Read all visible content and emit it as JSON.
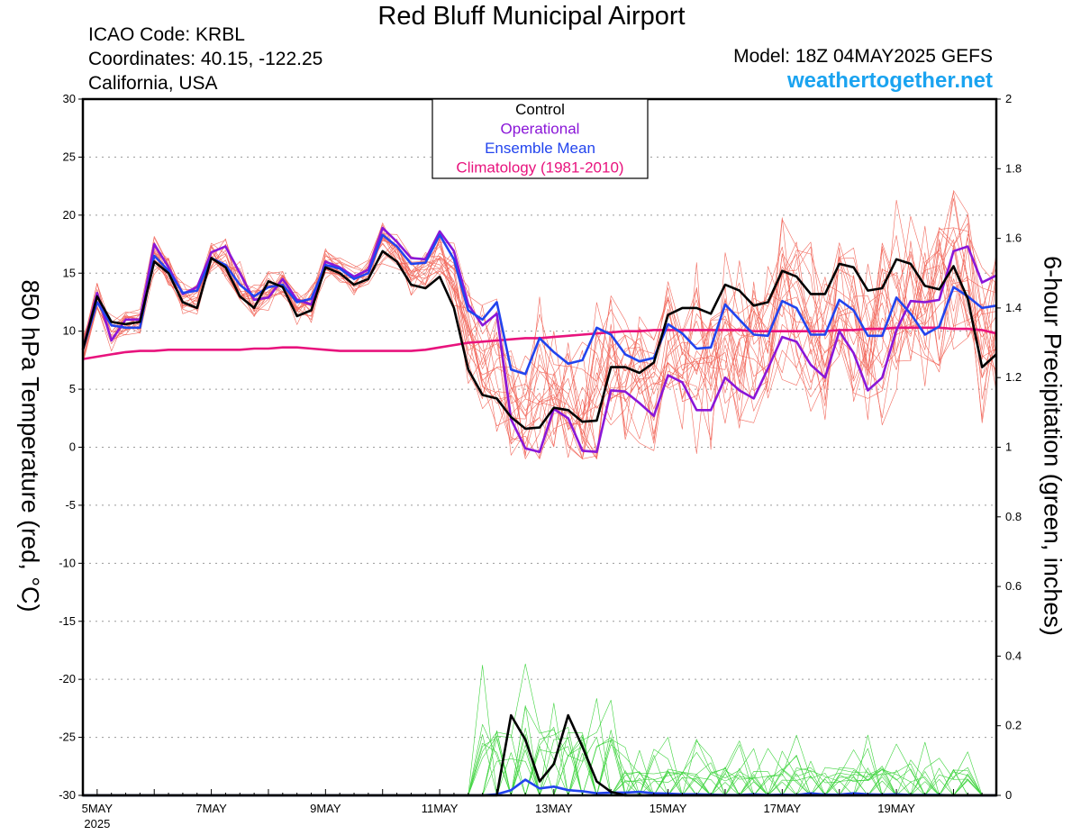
{
  "header": {
    "title": "Red Bluff Municipal Airport",
    "icao": "ICAO Code: KRBL",
    "coords": "Coordinates: 40.15, -122.25",
    "region": "California, USA",
    "model": "Model: 18Z 04MAY2025 GEFS",
    "site": "weathertogether.net"
  },
  "colors": {
    "control": "#000000",
    "operational": "#8a16d8",
    "ensemble_mean": "#2244ee",
    "climatology": "#e8137d",
    "members_temp": "#f26a5e",
    "members_precip": "#3fd43f",
    "site": "#1aa3f0"
  },
  "chart_data": {
    "type": "line",
    "title": "Red Bluff Municipal Airport",
    "ylabel": "850 hPa Temperature (red, °C)",
    "ylabel_right": "6-hour Precipitation (green, inches)",
    "ylim": [
      -30,
      30
    ],
    "ylim_right": [
      0,
      2
    ],
    "yticks": [
      -30,
      -25,
      -20,
      -15,
      -10,
      -5,
      0,
      5,
      10,
      15,
      20,
      25,
      30
    ],
    "yticks_right": [
      "0",
      "0.2",
      "0.4",
      "0.6",
      "0.8",
      "1",
      "1.2",
      "1.4",
      "1.6",
      "1.8",
      "2"
    ],
    "x_start_day": 4.75,
    "x_step_days": 0.25,
    "xlim": [
      4.75,
      20.75
    ],
    "grid": true,
    "xticks": [
      {
        "day": 5,
        "label": "5MAY",
        "sub": "2025"
      },
      {
        "day": 7,
        "label": "7MAY",
        "sub": ""
      },
      {
        "day": 9,
        "label": "9MAY",
        "sub": ""
      },
      {
        "day": 11,
        "label": "11MAY",
        "sub": ""
      },
      {
        "day": 13,
        "label": "13MAY",
        "sub": ""
      },
      {
        "day": 15,
        "label": "15MAY",
        "sub": ""
      },
      {
        "day": 17,
        "label": "17MAY",
        "sub": ""
      },
      {
        "day": 19,
        "label": "19MAY",
        "sub": ""
      }
    ],
    "legend": [
      "Control",
      "Operational",
      "Ensemble Mean",
      "Climatology (1981-2010)"
    ],
    "legend_position": "top-center",
    "series": [
      {
        "name": "Control",
        "axis": "temp",
        "values": [
          8.4,
          13.0,
          10.8,
          10.6,
          10.8,
          16.0,
          15.0,
          12.5,
          12.0,
          16.3,
          15.5,
          13.0,
          12.0,
          14.3,
          13.8,
          11.3,
          11.8,
          15.5,
          15.0,
          14.0,
          14.5,
          16.9,
          16.0,
          14.0,
          13.7,
          14.7,
          12.0,
          6.7,
          4.5,
          4.2,
          2.6,
          1.6,
          1.7,
          3.4,
          3.2,
          2.2,
          2.3,
          6.9,
          6.9,
          6.4,
          7.3,
          11.4,
          12.0,
          12.0,
          11.5,
          14.0,
          13.5,
          12.2,
          12.5,
          15.2,
          14.7,
          13.2,
          13.2,
          15.8,
          15.5,
          13.5,
          13.7,
          16.2,
          15.8,
          13.9,
          13.6,
          15.6,
          12.8,
          6.9,
          8.0
        ]
      },
      {
        "name": "Operational",
        "axis": "temp",
        "values": [
          8.4,
          13.3,
          9.2,
          11.0,
          11.0,
          17.5,
          15.5,
          13.2,
          13.8,
          16.8,
          17.3,
          15.0,
          12.7,
          12.9,
          14.5,
          12.7,
          12.3,
          16.0,
          15.5,
          14.7,
          15.3,
          18.9,
          17.7,
          16.3,
          16.2,
          18.6,
          16.9,
          12.3,
          10.5,
          11.5,
          2.4,
          -0.1,
          -0.4,
          3.3,
          2.5,
          -0.3,
          -0.4,
          4.9,
          4.8,
          3.8,
          2.7,
          6.2,
          5.6,
          3.2,
          3.2,
          6.0,
          4.9,
          4.2,
          6.8,
          9.5,
          9.1,
          7.1,
          6.0,
          10.0,
          8.1,
          4.9,
          6.0,
          10.1,
          12.6,
          12.5,
          12.7,
          16.9,
          17.3,
          14.2,
          14.8
        ]
      },
      {
        "name": "Ensemble Mean",
        "axis": "temp",
        "values": [
          8.4,
          12.5,
          10.5,
          10.3,
          10.3,
          16.5,
          15.2,
          13.3,
          13.5,
          16.3,
          15.7,
          14.0,
          13.0,
          13.8,
          14.0,
          12.5,
          12.8,
          15.7,
          15.4,
          14.5,
          15.0,
          18.3,
          17.3,
          15.8,
          15.9,
          18.3,
          16.2,
          11.8,
          11.0,
          12.5,
          6.7,
          6.3,
          9.4,
          8.2,
          7.2,
          7.5,
          10.3,
          9.7,
          8.0,
          7.4,
          7.7,
          10.6,
          9.8,
          8.5,
          8.6,
          12.3,
          11.0,
          9.7,
          9.6,
          12.6,
          12.0,
          9.7,
          9.7,
          12.7,
          11.8,
          9.6,
          9.6,
          12.9,
          11.5,
          9.7,
          10.4,
          13.8,
          13.0,
          12.0,
          12.2
        ]
      },
      {
        "name": "Climatology (1981-2010)",
        "axis": "temp",
        "values": [
          7.6,
          7.8,
          8.0,
          8.2,
          8.3,
          8.3,
          8.4,
          8.4,
          8.4,
          8.4,
          8.4,
          8.4,
          8.5,
          8.5,
          8.6,
          8.6,
          8.5,
          8.4,
          8.3,
          8.3,
          8.3,
          8.3,
          8.3,
          8.3,
          8.4,
          8.6,
          8.8,
          9.0,
          9.1,
          9.2,
          9.3,
          9.4,
          9.4,
          9.5,
          9.6,
          9.7,
          9.8,
          9.9,
          10.0,
          10.0,
          10.1,
          10.1,
          10.1,
          10.1,
          10.1,
          10.1,
          10.1,
          10.0,
          10.0,
          10.0,
          10.0,
          10.0,
          10.0,
          10.1,
          10.1,
          10.2,
          10.2,
          10.3,
          10.3,
          10.3,
          10.3,
          10.2,
          10.2,
          10.1,
          9.8
        ]
      },
      {
        "name": "Control",
        "axis": "precip",
        "values": [
          0,
          0,
          0,
          0,
          0,
          0,
          0,
          0,
          0,
          0,
          0,
          0,
          0,
          0,
          0,
          0,
          0,
          0,
          0,
          0,
          0,
          0,
          0,
          0,
          0,
          0,
          0,
          0,
          0,
          0,
          0.23,
          0.16,
          0.04,
          0.09,
          0.23,
          0.14,
          0.04,
          0.01,
          0,
          0,
          0,
          0,
          0,
          0,
          0,
          0,
          0,
          0,
          0,
          0,
          0,
          0,
          0,
          0,
          0,
          0,
          0,
          0,
          0,
          0,
          0,
          0,
          0,
          0,
          0
        ]
      },
      {
        "name": "Ensemble Mean",
        "axis": "precip",
        "values": [
          0,
          0,
          0,
          0,
          0,
          0,
          0,
          0,
          0,
          0,
          0,
          0,
          0,
          0,
          0,
          0,
          0,
          0,
          0,
          0,
          0,
          0,
          0,
          0,
          0,
          0,
          0,
          0,
          0,
          0.003,
          0.015,
          0.045,
          0.02,
          0.025,
          0.015,
          0.012,
          0.006,
          0.008,
          0.008,
          0.01,
          0.006,
          0.005,
          0.003,
          0.003,
          0.002,
          0.001,
          0.001,
          0.003,
          0.001,
          0.002,
          0.001,
          0.006,
          0.002,
          0.002,
          0.006,
          0.003,
          0.002,
          0.003,
          0.001,
          0.001,
          0.001,
          0,
          0,
          0,
          0
        ]
      }
    ]
  }
}
